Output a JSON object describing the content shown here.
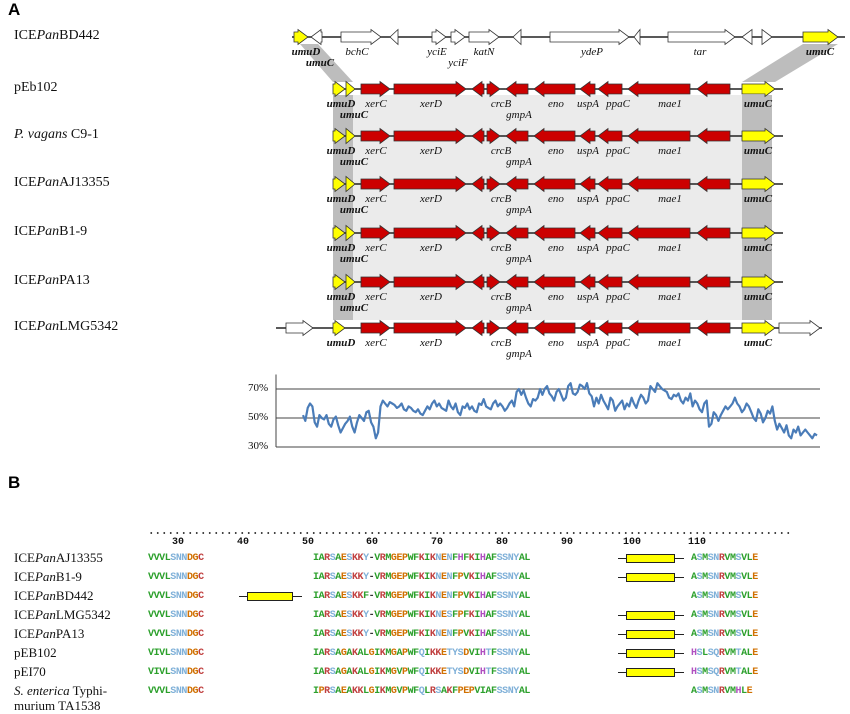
{
  "panel_a": {
    "letter": "A",
    "tracks": [
      {
        "id": "bd442",
        "label_parts": [
          {
            "t": "ICE",
            "i": false
          },
          {
            "t": "Pan",
            "i": true
          },
          {
            "t": "BD442",
            "i": false
          }
        ]
      },
      {
        "id": "peb102",
        "label_parts": [
          {
            "t": "pEb102",
            "i": false
          }
        ]
      },
      {
        "id": "c9",
        "label_parts": [
          {
            "t": "P. vagans",
            "i": true
          },
          {
            "t": " C9-1",
            "i": false
          }
        ]
      },
      {
        "id": "aj",
        "label_parts": [
          {
            "t": "ICE",
            "i": false
          },
          {
            "t": "Pan",
            "i": true
          },
          {
            "t": "AJ13355",
            "i": false
          }
        ]
      },
      {
        "id": "b19",
        "label_parts": [
          {
            "t": "ICE",
            "i": false
          },
          {
            "t": "Pan",
            "i": true
          },
          {
            "t": "B1-9",
            "i": false
          }
        ]
      },
      {
        "id": "pa13",
        "label_parts": [
          {
            "t": "ICE",
            "i": false
          },
          {
            "t": "Pan",
            "i": true
          },
          {
            "t": "PA13",
            "i": false
          }
        ]
      },
      {
        "id": "lmg",
        "label_parts": [
          {
            "t": "ICE",
            "i": false
          },
          {
            "t": "Pan",
            "i": true
          },
          {
            "t": "LMG5342",
            "i": false
          }
        ]
      }
    ],
    "bd442_genes_upper": [
      "umuD",
      "bchC",
      "yciE",
      "katN",
      "ydeP",
      "tar",
      "umuC"
    ],
    "bd442_genes_lower": [
      "umuC",
      "yciF"
    ],
    "core_genes_upper": [
      "umuD",
      "xerC",
      "xerD",
      "crcB",
      "eno",
      "uspA",
      "ppaC",
      "mae1",
      "umuC"
    ],
    "core_genes_lower": [
      "umuC",
      "gmpA"
    ],
    "identity_ticks": [
      "70%",
      "50%",
      "30%"
    ],
    "identity_profile": [
      52,
      48,
      57,
      60,
      58,
      47,
      44,
      52,
      50,
      49,
      52,
      46,
      44,
      49,
      51,
      45,
      40,
      43,
      46,
      48,
      51,
      44,
      40,
      47,
      52,
      50,
      48,
      54,
      55,
      47,
      44,
      36,
      40,
      58,
      62,
      60,
      58,
      61,
      60,
      59,
      57,
      58,
      60,
      56,
      55,
      58,
      57,
      55,
      54,
      56,
      53,
      52,
      55,
      58,
      56,
      60,
      62,
      58,
      60,
      57,
      56,
      55,
      62,
      58,
      56,
      60,
      54,
      52,
      58,
      57,
      60,
      56,
      58,
      55,
      54,
      60,
      59,
      63,
      58,
      57,
      56,
      60,
      62,
      58,
      60,
      58,
      55,
      57,
      60,
      62,
      58,
      68,
      70,
      66,
      69,
      64,
      60,
      58,
      63,
      62,
      64,
      70,
      66,
      70,
      72,
      67,
      65,
      62,
      68,
      70,
      66,
      62,
      64,
      72,
      74,
      67,
      66,
      68,
      73,
      72,
      70,
      74,
      67,
      65,
      58,
      64,
      60,
      66,
      62,
      59,
      56,
      64,
      62,
      55,
      58,
      60,
      62,
      56,
      60,
      58,
      64,
      60,
      57,
      62,
      66,
      64,
      60,
      62,
      72,
      70,
      68,
      74,
      72,
      70,
      69,
      68,
      64,
      63,
      66,
      65,
      67,
      62,
      60,
      64,
      62,
      67,
      58,
      62,
      60,
      56,
      54,
      60,
      62,
      44,
      46,
      54,
      52,
      48,
      52,
      55,
      58,
      56,
      58,
      60,
      64,
      60,
      58,
      54,
      56,
      60,
      58,
      54,
      50,
      48,
      56,
      53,
      47,
      50,
      55,
      53,
      58,
      48,
      42,
      46,
      43,
      40,
      45,
      38,
      36,
      42,
      40,
      44,
      38,
      40,
      42,
      40,
      38,
      36,
      39,
      38
    ]
  },
  "panel_b": {
    "letter": "B",
    "ruler_ticks": [
      "30",
      "40",
      "50",
      "60",
      "70",
      "80",
      "90",
      "100",
      "110"
    ],
    "sequences": [
      {
        "name_parts": [
          {
            "t": "ICE",
            "i": false
          },
          {
            "t": "Pan",
            "i": true
          },
          {
            "t": "AJ13355",
            "i": false
          }
        ],
        "s1": "VVVLSNNDGC",
        "s2": "IARSAESKKY-VRMGEPWFKIKNENFHFKIHAFSSNYAL",
        "s3": "ASMSNRVMSVLE",
        "helix": "b"
      },
      {
        "name_parts": [
          {
            "t": "ICE",
            "i": false
          },
          {
            "t": "Pan",
            "i": true
          },
          {
            "t": "B1-9",
            "i": false
          }
        ],
        "s1": "VVVLSNNDGC",
        "s2": "IARSAESKKY-VRMGEPWFKIKNENFPVKIHAFSSNYAL",
        "s3": "ASMSNRVMSVLE",
        "helix": "b"
      },
      {
        "name_parts": [
          {
            "t": "ICE",
            "i": false
          },
          {
            "t": "Pan",
            "i": true
          },
          {
            "t": "BD442",
            "i": false
          }
        ],
        "s1": "VVVLSNNDGC",
        "s2": "IARSAESKKF-VRMGEPWFKIKNENFPVKIHAFSSNYAL",
        "s3": "ASMSNRVMSVLE",
        "helix": "a"
      },
      {
        "name_parts": [
          {
            "t": "ICE",
            "i": false
          },
          {
            "t": "Pan",
            "i": true
          },
          {
            "t": "LMG5342",
            "i": false
          }
        ],
        "s1": "VVVLSNNDGC",
        "s2": "IARSAESKKY-VRMGEPWFKIKNESFPFKIHAFSSNYAL",
        "s3": "ASMSNRVMSVLE",
        "helix": "b"
      },
      {
        "name_parts": [
          {
            "t": "ICE",
            "i": false
          },
          {
            "t": "Pan",
            "i": true
          },
          {
            "t": "PA13",
            "i": false
          }
        ],
        "s1": "VVVLSNNDGC",
        "s2": "IARSAESKKY-VRMGEPWFKIKNENFPVKIHAFSSNYAL",
        "s3": "ASMSNRVMSVLE",
        "helix": "b"
      },
      {
        "name_parts": [
          {
            "t": "pEB102",
            "i": false
          }
        ],
        "s1": "VIVLSNNDGC",
        "s2": "IARSAGAKALGIKMGAPWFQIKKETYSDVIHTFSSNYAL",
        "s3": "HSLSQRVMTALE",
        "helix": "b"
      },
      {
        "name_parts": [
          {
            "t": "pEI70",
            "i": false
          }
        ],
        "s1": "VIVLSNNDGC",
        "s2": "IARSAGAKALGIKMGVPWFQIKKETYSDVIHTFSSNYAL",
        "s3": "HSMSQRVMTALE",
        "helix": "b"
      },
      {
        "name_parts": [
          {
            "t": "S. enterica",
            "i": true
          },
          {
            "t": " Typhi-",
            "i": false
          }
        ],
        "name_line2": "murium TA1538",
        "s1": "VVVLSNNDGC",
        "s2": "IPRSAEAKKLGIKMGVPWFQLRSAKFPEPVIAFSSNYAL",
        "s3": "ASMSNRVMHLE",
        "helix": "none"
      }
    ]
  },
  "colors": {
    "red_gene": "#cc0000",
    "yellow_gene": "#ffff00",
    "shade_light": "#ebebeb",
    "shade_dark": "#bdbdbd",
    "identity_line": "#4a7cb8",
    "aa_hydrophobic": "#2ca02c",
    "aa_polar": "#7fb0d8",
    "aa_positive": "#c04040",
    "aa_negative": "#d07000",
    "aa_special": "#b050c0"
  }
}
